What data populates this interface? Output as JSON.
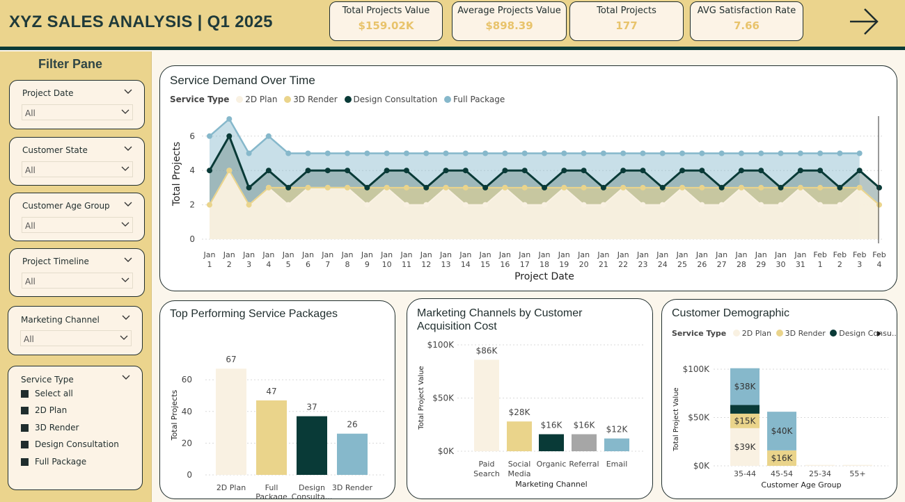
{
  "header": {
    "title": "XYZ SALES ANALYSIS | Q1 2025",
    "kpis": [
      {
        "label": "Total Projects Value",
        "value": "$159.02K"
      },
      {
        "label": "Average Projects Value",
        "value": "$898.39"
      },
      {
        "label": "Total Projects",
        "value": "177"
      },
      {
        "label": "AVG Satisfaction Rate",
        "value": "7.66"
      }
    ],
    "nav_icon": "arrow-right-icon"
  },
  "filter_pane": {
    "title": "Filter Pane",
    "slicers": [
      {
        "label": "Project Date",
        "value": "All"
      },
      {
        "label": "Customer State",
        "value": "All"
      },
      {
        "label": "Customer Age Group",
        "value": "All"
      },
      {
        "label": "Project Timeline",
        "value": "All"
      },
      {
        "label": "Marketing Channel",
        "value": "All"
      }
    ],
    "service_type": {
      "label": "Service Type",
      "options": [
        "Select all",
        "2D Plan",
        "3D Render",
        "Design Consultation",
        "Full Package"
      ]
    }
  },
  "colors": {
    "2D Plan": "#f9f1e2",
    "3D Render": "#ead48b",
    "Design Consultation": "#093a37",
    "Full Package": "#86b8cb",
    "Referral": "#a6a6a6"
  },
  "service_demand": {
    "title": "Service Demand Over Time",
    "legend_title": "Service Type",
    "legend": [
      "2D Plan",
      "3D Render",
      "Design Consultation",
      "Full Package"
    ],
    "ylabel": "Total Projects",
    "xlabel": "Project Date",
    "x_ticks": [
      [
        "Jan",
        "1"
      ],
      [
        "Jan",
        "2"
      ],
      [
        "Jan",
        "3"
      ],
      [
        "Jan",
        "4"
      ],
      [
        "Jan",
        "5"
      ],
      [
        "Jan",
        "6"
      ],
      [
        "Jan",
        "7"
      ],
      [
        "Jan",
        "8"
      ],
      [
        "Jan",
        "9"
      ],
      [
        "Jan",
        "10"
      ],
      [
        "Jan",
        "11"
      ],
      [
        "Jan",
        "12"
      ],
      [
        "Jan",
        "13"
      ],
      [
        "Jan",
        "14"
      ],
      [
        "Jan",
        "15"
      ],
      [
        "Jan",
        "16"
      ],
      [
        "Jan",
        "17"
      ],
      [
        "Jan",
        "18"
      ],
      [
        "Jan",
        "19"
      ],
      [
        "Jan",
        "20"
      ],
      [
        "Jan",
        "21"
      ],
      [
        "Jan",
        "22"
      ],
      [
        "Jan",
        "23"
      ],
      [
        "Jan",
        "24"
      ],
      [
        "Jan",
        "25"
      ],
      [
        "Jan",
        "26"
      ],
      [
        "Jan",
        "27"
      ],
      [
        "Jan",
        "28"
      ],
      [
        "Jan",
        "29"
      ],
      [
        "Jan",
        "30"
      ],
      [
        "Jan",
        "31"
      ],
      [
        "Feb",
        "1"
      ],
      [
        "Feb",
        "2"
      ],
      [
        "Feb",
        "3"
      ],
      [
        "Feb",
        "4"
      ]
    ],
    "y_ticks": [
      "0",
      "2",
      "4",
      "6"
    ]
  },
  "top_packages": {
    "title": "Top Performing Service Packages",
    "ylabel": "Total Projects",
    "xlabel": "Service Type",
    "y_ticks": [
      "0",
      "20",
      "40",
      "60"
    ],
    "categories": [
      [
        "2D Plan"
      ],
      [
        "Full",
        "Package"
      ],
      [
        "Design",
        "Consulta..."
      ],
      [
        "3D Render"
      ]
    ]
  },
  "marketing_channels": {
    "title_line1": "Marketing Channels by Customer",
    "title_line2": "Acquisition Cost",
    "ylabel": "Total Project Value",
    "xlabel": "Marketing Channel",
    "y_ticks": [
      "$0K",
      "$50K",
      "$100K"
    ],
    "categories": [
      [
        "Paid",
        "Search"
      ],
      [
        "Social",
        "Media"
      ],
      [
        "Organic"
      ],
      [
        "Referral"
      ],
      [
        "Email"
      ]
    ]
  },
  "demographic": {
    "title": "Customer Demographic",
    "legend_title": "Service Type",
    "legend": [
      "2D Plan",
      "3D Render",
      "Design Consu..."
    ],
    "ylabel": "Total Project Value",
    "xlabel": "Customer Age Group",
    "y_ticks": [
      "$0K",
      "$50K",
      "$100K"
    ],
    "categories": [
      "35-44",
      "45-54",
      "25-34",
      "55+"
    ]
  },
  "chart_data": [
    {
      "type": "area",
      "title": "Service Demand Over Time",
      "xlabel": "Project Date",
      "ylabel": "Total Projects",
      "ylim": [
        0,
        7
      ],
      "x": [
        "Jan 1",
        "Jan 2",
        "Jan 3",
        "Jan 4",
        "Jan 5",
        "Jan 6",
        "Jan 7",
        "Jan 8",
        "Jan 9",
        "Jan 10",
        "Jan 11",
        "Jan 12",
        "Jan 13",
        "Jan 14",
        "Jan 15",
        "Jan 16",
        "Jan 17",
        "Jan 18",
        "Jan 19",
        "Jan 20",
        "Jan 21",
        "Jan 22",
        "Jan 23",
        "Jan 24",
        "Jan 25",
        "Jan 26",
        "Jan 27",
        "Jan 28",
        "Jan 29",
        "Jan 30",
        "Jan 31",
        "Feb 1",
        "Feb 2",
        "Feb 3",
        "Feb 4"
      ],
      "series": [
        {
          "name": "2D Plan",
          "values": [
            2,
            4,
            2,
            3,
            2,
            3,
            3,
            3,
            2,
            3,
            2,
            2,
            3,
            2,
            2,
            3,
            2,
            2,
            3,
            2,
            2,
            3,
            2,
            2,
            3,
            2,
            2,
            3,
            2,
            2,
            3,
            2,
            2,
            3,
            2
          ]
        },
        {
          "name": "3D Render",
          "values": [
            2,
            4,
            2,
            3,
            3,
            3,
            3,
            3,
            3,
            3,
            3,
            3,
            3,
            3,
            3,
            3,
            3,
            3,
            3,
            3,
            3,
            3,
            3,
            3,
            3,
            3,
            3,
            3,
            3,
            3,
            3,
            3,
            3,
            3,
            2
          ]
        },
        {
          "name": "Design Consultation",
          "values": [
            4,
            6,
            3,
            4,
            3,
            4,
            4,
            4,
            3,
            4,
            4,
            3,
            4,
            4,
            3,
            4,
            4,
            3,
            4,
            4,
            3,
            4,
            4,
            3,
            4,
            4,
            3,
            4,
            4,
            3,
            4,
            4,
            3,
            4,
            3
          ]
        },
        {
          "name": "Full Package",
          "values": [
            6,
            7,
            5,
            6,
            5,
            5,
            5,
            5,
            5,
            5,
            5,
            5,
            5,
            5,
            5,
            5,
            5,
            5,
            5,
            5,
            5,
            5,
            5,
            5,
            5,
            5,
            5,
            5,
            5,
            5,
            5,
            5,
            5,
            5,
            null
          ]
        }
      ]
    },
    {
      "type": "bar",
      "title": "Top Performing Service Packages",
      "xlabel": "Service Type",
      "ylabel": "Total Projects",
      "categories": [
        "2D Plan",
        "Full Package",
        "Design Consultation",
        "3D Render"
      ],
      "values": [
        67,
        47,
        37,
        26
      ],
      "labels": [
        "67",
        "47",
        "37",
        "26"
      ],
      "ylim": [
        0,
        70
      ]
    },
    {
      "type": "bar",
      "title": "Marketing Channels by Customer Acquisition Cost",
      "xlabel": "Marketing Channel",
      "ylabel": "Total Project Value",
      "categories": [
        "Paid Search",
        "Social Media",
        "Organic",
        "Referral",
        "Email"
      ],
      "values": [
        86,
        28,
        16,
        16,
        12
      ],
      "labels": [
        "$86K",
        "$28K",
        "$16K",
        "$16K",
        "$12K"
      ],
      "ylim": [
        0,
        100
      ]
    },
    {
      "type": "bar",
      "title": "Customer Demographic",
      "xlabel": "Customer Age Group",
      "ylabel": "Total Project Value",
      "stacked": true,
      "categories": [
        "35-44",
        "45-54",
        "25-34",
        "55+"
      ],
      "ylim": [
        0,
        100
      ],
      "series": [
        {
          "name": "2D Plan",
          "values": [
            39,
            0,
            1,
            1
          ],
          "labels": [
            "$39K",
            "",
            "",
            ""
          ]
        },
        {
          "name": "3D Render",
          "values": [
            15,
            16,
            0,
            0
          ],
          "labels": [
            "$15K",
            "$16K",
            "",
            ""
          ]
        },
        {
          "name": "Design Consultation",
          "values": [
            9,
            0,
            0,
            0
          ],
          "labels": [
            "",
            "",
            "",
            ""
          ]
        },
        {
          "name": "Full Package",
          "values": [
            38,
            40,
            0,
            0
          ],
          "labels": [
            "$38K",
            "$40K",
            "",
            ""
          ]
        }
      ]
    }
  ]
}
